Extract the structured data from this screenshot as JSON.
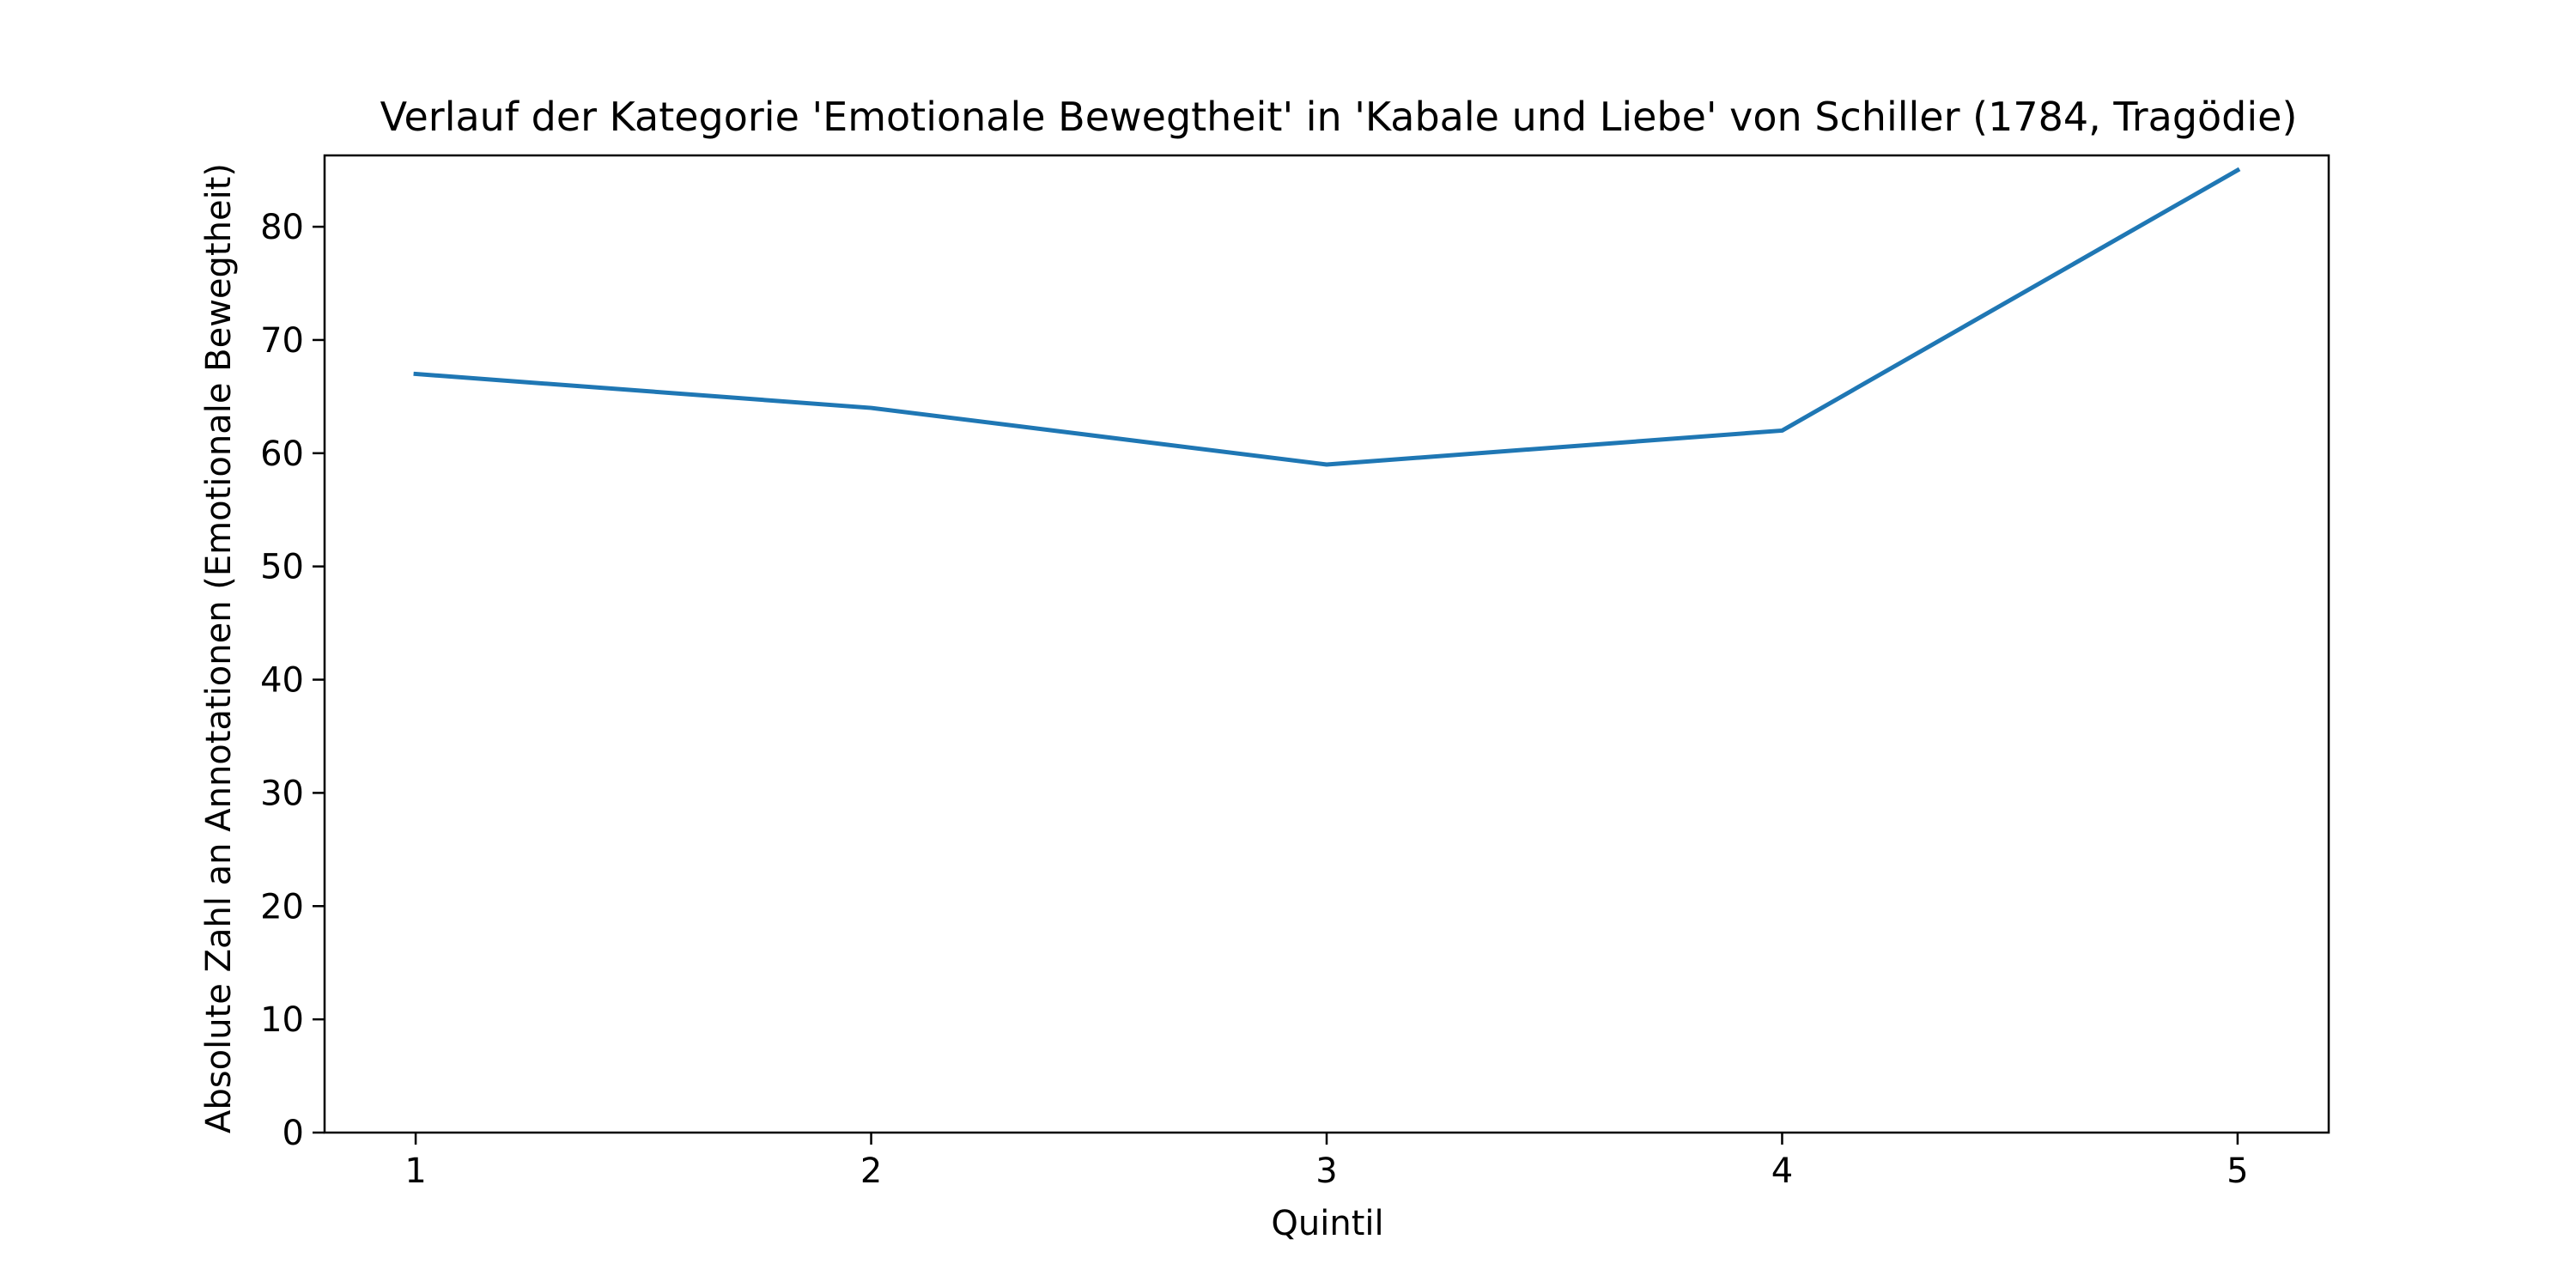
{
  "chart_data": {
    "type": "line",
    "title": "Verlauf der Kategorie 'Emotionale Bewegtheit' in 'Kabale und Liebe' von Schiller (1784, Tragödie)",
    "xlabel": "Quintil",
    "ylabel": "Absolute Zahl an Annotationen (Emotionale Bewegtheit)",
    "x": [
      1,
      2,
      3,
      4,
      5
    ],
    "xticks": [
      "1",
      "2",
      "3",
      "4",
      "5"
    ],
    "yticks": [
      "0",
      "10",
      "20",
      "30",
      "40",
      "50",
      "60",
      "70",
      "80"
    ],
    "xlim": [
      0.8,
      5.2
    ],
    "ylim": [
      0,
      86.3
    ],
    "grid": false,
    "series": [
      {
        "values": [
          67,
          64,
          59,
          62,
          85
        ],
        "color": "#1f77b4"
      }
    ]
  }
}
